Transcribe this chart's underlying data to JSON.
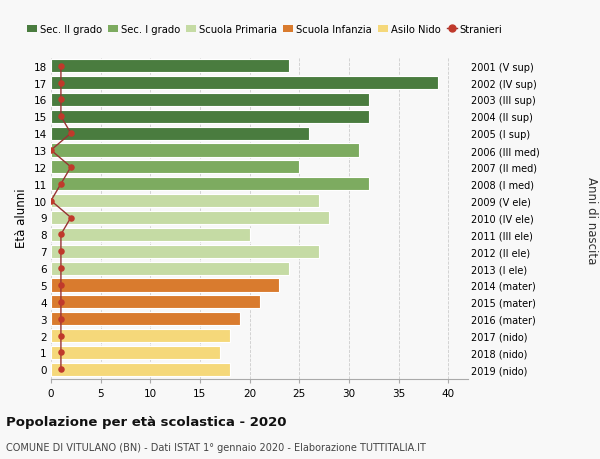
{
  "ages": [
    18,
    17,
    16,
    15,
    14,
    13,
    12,
    11,
    10,
    9,
    8,
    7,
    6,
    5,
    4,
    3,
    2,
    1,
    0
  ],
  "right_labels": [
    "2001 (V sup)",
    "2002 (IV sup)",
    "2003 (III sup)",
    "2004 (II sup)",
    "2005 (I sup)",
    "2006 (III med)",
    "2007 (II med)",
    "2008 (I med)",
    "2009 (V ele)",
    "2010 (IV ele)",
    "2011 (III ele)",
    "2012 (II ele)",
    "2013 (I ele)",
    "2014 (mater)",
    "2015 (mater)",
    "2016 (mater)",
    "2017 (nido)",
    "2018 (nido)",
    "2019 (nido)"
  ],
  "bar_values": [
    24,
    39,
    32,
    32,
    26,
    31,
    25,
    32,
    27,
    28,
    20,
    27,
    24,
    23,
    21,
    19,
    18,
    17,
    18
  ],
  "bar_colors": [
    "#4a7c3f",
    "#4a7c3f",
    "#4a7c3f",
    "#4a7c3f",
    "#4a7c3f",
    "#7dab60",
    "#7dab60",
    "#7dab60",
    "#c5dba4",
    "#c5dba4",
    "#c5dba4",
    "#c5dba4",
    "#c5dba4",
    "#d97b2e",
    "#d97b2e",
    "#d97b2e",
    "#f5d87a",
    "#f5d87a",
    "#f5d87a"
  ],
  "stranieri_values": [
    1,
    1,
    1,
    1,
    2,
    0,
    2,
    1,
    0,
    2,
    1,
    1,
    1,
    1,
    1,
    1,
    1,
    1,
    1
  ],
  "legend_labels": [
    "Sec. II grado",
    "Sec. I grado",
    "Scuola Primaria",
    "Scuola Infanzia",
    "Asilo Nido",
    "Stranieri"
  ],
  "legend_colors": [
    "#4a7c3f",
    "#7dab60",
    "#c5dba4",
    "#d97b2e",
    "#f5d87a",
    "#c0392b"
  ],
  "ylabel_left": "Età alunni",
  "ylabel_right": "Anni di nascita",
  "title": "Popolazione per età scolastica - 2020",
  "subtitle": "COMUNE DI VITULANO (BN) - Dati ISTAT 1° gennaio 2020 - Elaborazione TUTTITALIA.IT",
  "xlim": [
    0,
    42
  ],
  "grid_color": "#cccccc",
  "background_color": "#f8f8f8",
  "stranieri_color": "#c0392b",
  "stranieri_line_color": "#993333"
}
